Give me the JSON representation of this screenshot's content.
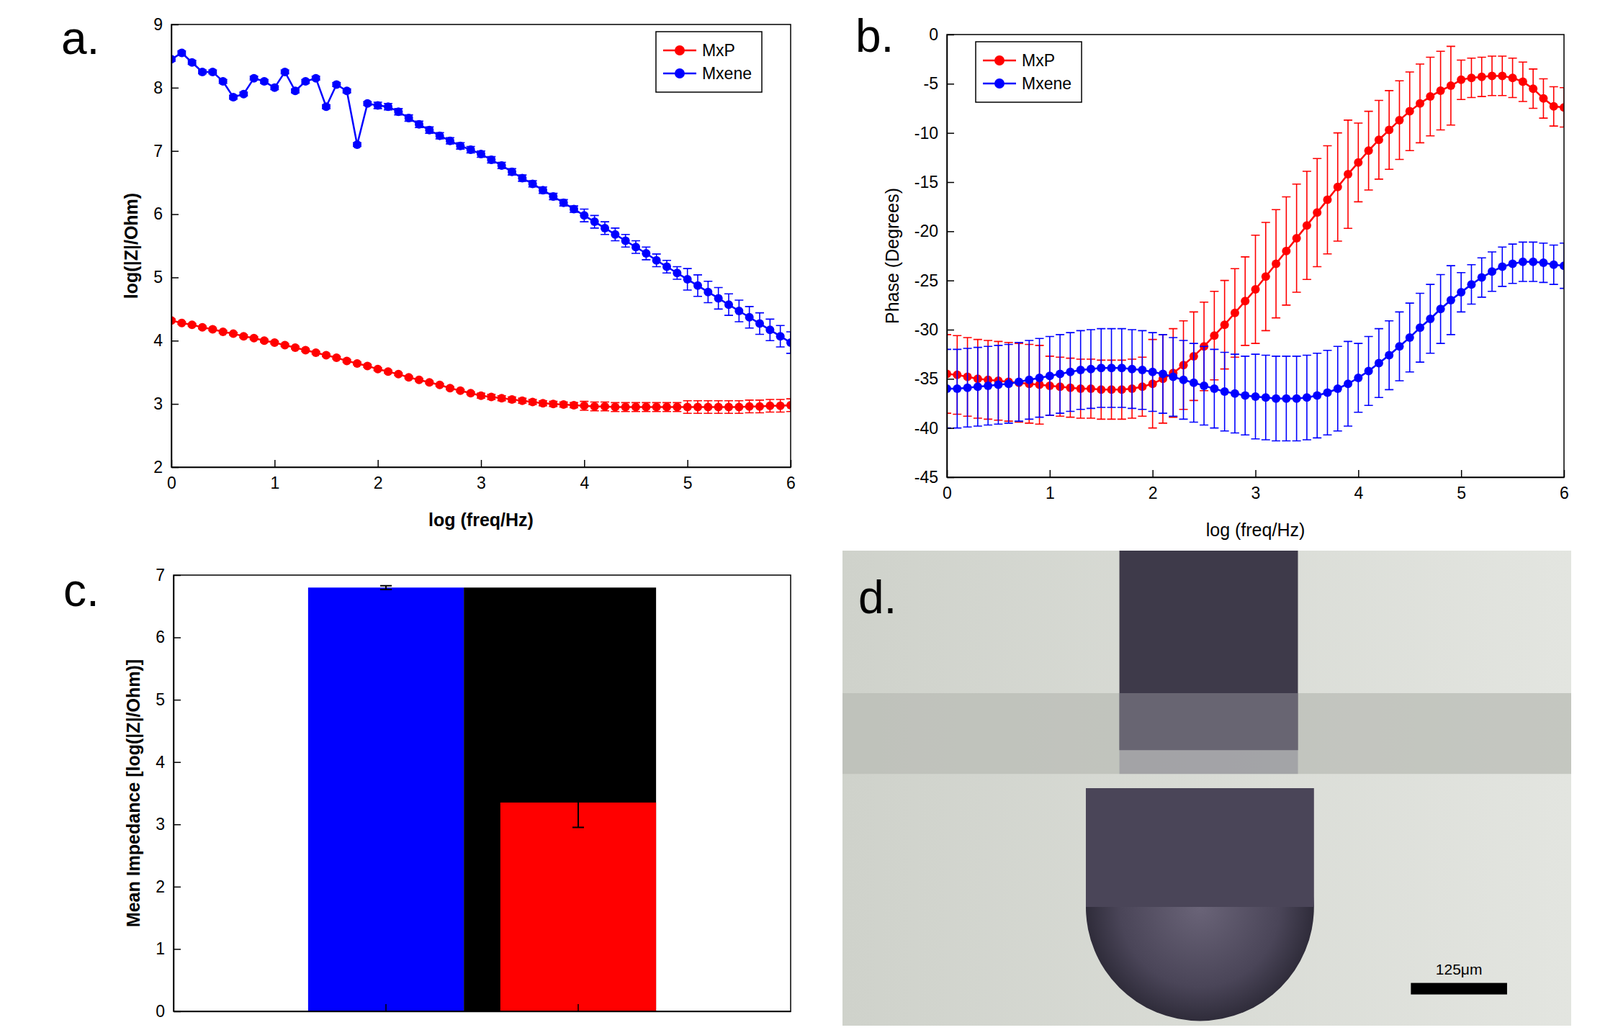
{
  "chart_data": [
    {
      "type": "line",
      "panel": "a.",
      "xlabel": "log (freq/Hz)",
      "ylabel": "log(|Z|/Ohm)",
      "x": [
        0,
        0.1,
        0.2,
        0.3,
        0.4,
        0.5,
        0.6,
        0.7,
        0.8,
        0.9,
        1,
        1.1,
        1.2,
        1.3,
        1.4,
        1.5,
        1.6,
        1.7,
        1.8,
        1.9,
        2,
        2.1,
        2.2,
        2.3,
        2.4,
        2.5,
        2.6,
        2.7,
        2.8,
        2.9,
        3,
        3.1,
        3.2,
        3.3,
        3.4,
        3.5,
        3.6,
        3.7,
        3.8,
        3.9,
        4,
        4.1,
        4.2,
        4.3,
        4.4,
        4.5,
        4.6,
        4.7,
        4.8,
        4.9,
        5,
        5.1,
        5.2,
        5.3,
        5.4,
        5.5,
        5.6,
        5.7,
        5.8,
        5.9,
        6
      ],
      "series": [
        {
          "name": "MxP",
          "color": "#ff0000",
          "marker": "circle",
          "line_style": "solid",
          "values": [
            4.32,
            4.28,
            4.25,
            4.21,
            4.18,
            4.14,
            4.11,
            4.07,
            4.04,
            4.0,
            3.97,
            3.93,
            3.89,
            3.85,
            3.81,
            3.77,
            3.73,
            3.68,
            3.64,
            3.6,
            3.55,
            3.51,
            3.47,
            3.42,
            3.38,
            3.34,
            3.3,
            3.25,
            3.21,
            3.17,
            3.13,
            3.11,
            3.09,
            3.07,
            3.05,
            3.03,
            3.01,
            3.0,
            2.99,
            2.98,
            2.97,
            2.96,
            2.96,
            2.95,
            2.95,
            2.95,
            2.95,
            2.95,
            2.95,
            2.95,
            2.95,
            2.95,
            2.95,
            2.95,
            2.95,
            2.95,
            2.96,
            2.96,
            2.97,
            2.97,
            2.98
          ],
          "errors": [
            0.02,
            0.02,
            0.02,
            0.02,
            0.02,
            0.02,
            0.02,
            0.02,
            0.02,
            0.02,
            0.02,
            0.02,
            0.02,
            0.02,
            0.02,
            0.02,
            0.02,
            0.02,
            0.02,
            0.02,
            0.02,
            0.02,
            0.02,
            0.02,
            0.02,
            0.02,
            0.02,
            0.02,
            0.02,
            0.02,
            0.04,
            0.04,
            0.04,
            0.04,
            0.04,
            0.04,
            0.04,
            0.04,
            0.04,
            0.04,
            0.07,
            0.07,
            0.07,
            0.07,
            0.07,
            0.07,
            0.07,
            0.07,
            0.07,
            0.07,
            0.1,
            0.1,
            0.1,
            0.1,
            0.1,
            0.1,
            0.1,
            0.1,
            0.1,
            0.1,
            0.1
          ]
        },
        {
          "name": "Mxene",
          "color": "#0000ff",
          "marker": "circle",
          "line_style": "solid",
          "values": [
            8.45,
            8.55,
            8.4,
            8.25,
            8.25,
            8.1,
            7.85,
            7.9,
            8.15,
            8.1,
            8.0,
            8.25,
            7.95,
            8.1,
            8.15,
            7.7,
            8.05,
            7.95,
            7.1,
            7.75,
            7.72,
            7.7,
            7.62,
            7.52,
            7.42,
            7.33,
            7.24,
            7.16,
            7.08,
            7.02,
            6.95,
            6.86,
            6.77,
            6.67,
            6.57,
            6.48,
            6.38,
            6.28,
            6.18,
            6.08,
            5.98,
            5.88,
            5.78,
            5.68,
            5.58,
            5.48,
            5.38,
            5.27,
            5.17,
            5.07,
            4.97,
            4.87,
            4.77,
            4.67,
            4.57,
            4.47,
            4.37,
            4.27,
            4.17,
            4.07,
            3.97
          ],
          "errors": [
            0.03,
            0.03,
            0.03,
            0.03,
            0.03,
            0.03,
            0.03,
            0.03,
            0.03,
            0.03,
            0.03,
            0.03,
            0.03,
            0.03,
            0.03,
            0.03,
            0.03,
            0.03,
            0.03,
            0.03,
            0.05,
            0.05,
            0.05,
            0.05,
            0.05,
            0.05,
            0.05,
            0.05,
            0.05,
            0.05,
            0.05,
            0.05,
            0.05,
            0.05,
            0.05,
            0.05,
            0.05,
            0.05,
            0.05,
            0.05,
            0.1,
            0.1,
            0.1,
            0.1,
            0.1,
            0.1,
            0.1,
            0.1,
            0.1,
            0.1,
            0.17,
            0.17,
            0.17,
            0.17,
            0.17,
            0.17,
            0.17,
            0.17,
            0.17,
            0.17,
            0.17
          ]
        }
      ],
      "xlim": [
        0,
        6
      ],
      "xticks": [
        0,
        1,
        2,
        3,
        4,
        5,
        6
      ],
      "ylim": [
        2,
        9
      ],
      "yticks": [
        2,
        3,
        4,
        5,
        6,
        7,
        8,
        9
      ],
      "legend": "upper right",
      "grid": false
    },
    {
      "type": "line",
      "panel": "b.",
      "xlabel": "log (freq/Hz)",
      "ylabel": "Phase (Degrees)",
      "x": [
        0,
        0.1,
        0.2,
        0.3,
        0.4,
        0.5,
        0.6,
        0.7,
        0.8,
        0.9,
        1,
        1.1,
        1.2,
        1.3,
        1.4,
        1.5,
        1.6,
        1.7,
        1.8,
        1.9,
        2,
        2.1,
        2.2,
        2.3,
        2.4,
        2.5,
        2.6,
        2.7,
        2.8,
        2.9,
        3,
        3.1,
        3.2,
        3.3,
        3.4,
        3.5,
        3.6,
        3.7,
        3.8,
        3.9,
        4,
        4.1,
        4.2,
        4.3,
        4.4,
        4.5,
        4.6,
        4.7,
        4.8,
        4.9,
        5,
        5.1,
        5.2,
        5.3,
        5.4,
        5.5,
        5.6,
        5.7,
        5.8,
        5.9,
        6
      ],
      "series": [
        {
          "name": "MxP",
          "color": "#ff0000",
          "marker": "circle",
          "line_style": "solid",
          "values": [
            -34.5,
            -34.6,
            -34.8,
            -35.0,
            -35.1,
            -35.2,
            -35.3,
            -35.4,
            -35.5,
            -35.6,
            -35.7,
            -35.8,
            -35.9,
            -36.0,
            -36.0,
            -36.1,
            -36.1,
            -36.1,
            -36.0,
            -35.8,
            -35.5,
            -35.0,
            -34.4,
            -33.6,
            -32.7,
            -31.7,
            -30.6,
            -29.5,
            -28.3,
            -27.1,
            -25.9,
            -24.6,
            -23.3,
            -22.0,
            -20.7,
            -19.4,
            -18.1,
            -16.8,
            -15.5,
            -14.2,
            -13.0,
            -11.8,
            -10.7,
            -9.7,
            -8.7,
            -7.8,
            -7.0,
            -6.3,
            -5.7,
            -5.2,
            -4.6,
            -4.4,
            -4.3,
            -4.2,
            -4.2,
            -4.4,
            -4.8,
            -5.5,
            -6.5,
            -7.3,
            -7.4
          ],
          "errors": [
            4,
            4,
            4,
            4,
            4,
            4,
            4,
            4,
            4,
            4,
            3,
            3,
            3,
            3,
            3,
            3,
            3,
            3,
            3,
            3,
            4.5,
            4.5,
            4.5,
            4.5,
            4.5,
            4.5,
            4.5,
            4.5,
            4.5,
            4.5,
            5.5,
            5.5,
            5.5,
            5.5,
            5.5,
            5.5,
            5.5,
            5.5,
            5.5,
            5.5,
            4,
            4,
            4,
            4,
            4,
            4,
            4,
            4,
            4,
            4,
            2,
            2,
            2,
            2,
            2,
            2,
            2,
            2,
            2,
            2,
            2
          ]
        },
        {
          "name": "Mxene",
          "color": "#0000ff",
          "marker": "circle",
          "line_style": "solid",
          "values": [
            -36.0,
            -36.0,
            -35.9,
            -35.8,
            -35.7,
            -35.6,
            -35.5,
            -35.3,
            -35.1,
            -34.9,
            -34.7,
            -34.5,
            -34.3,
            -34.1,
            -34.0,
            -33.9,
            -33.9,
            -33.9,
            -34.0,
            -34.1,
            -34.3,
            -34.5,
            -34.8,
            -35.1,
            -35.4,
            -35.7,
            -36.0,
            -36.3,
            -36.5,
            -36.7,
            -36.8,
            -36.9,
            -37.0,
            -37.0,
            -37.0,
            -36.9,
            -36.7,
            -36.4,
            -36.0,
            -35.5,
            -34.9,
            -34.2,
            -33.4,
            -32.6,
            -31.7,
            -30.8,
            -29.8,
            -28.9,
            -27.9,
            -27.0,
            -26.2,
            -25.4,
            -24.7,
            -24.1,
            -23.6,
            -23.3,
            -23.1,
            -23.1,
            -23.2,
            -23.4,
            -23.5
          ],
          "errors": [
            4,
            4,
            4,
            4,
            4,
            4,
            4,
            4,
            4,
            4,
            4,
            4,
            4,
            4,
            4,
            4,
            4,
            4,
            4,
            4,
            4,
            4,
            4,
            4,
            4,
            4,
            4,
            4,
            4,
            4,
            4.3,
            4.3,
            4.3,
            4.3,
            4.3,
            4.3,
            4.3,
            4.3,
            4.3,
            4.3,
            3.5,
            3.5,
            3.5,
            3.5,
            3.5,
            3.5,
            3.5,
            3.5,
            3.5,
            3.5,
            2,
            2,
            2,
            2,
            2,
            2,
            2,
            2,
            2,
            2,
            2.3
          ]
        }
      ],
      "xlim": [
        0,
        6
      ],
      "xticks": [
        0,
        1,
        2,
        3,
        4,
        5,
        6
      ],
      "ylim": [
        -45,
        0
      ],
      "yticks": [
        -45,
        -40,
        -35,
        -30,
        -25,
        -20,
        -15,
        -10,
        -5,
        0
      ],
      "legend": "upper left",
      "grid": false
    },
    {
      "type": "bar",
      "panel": "c.",
      "ylabel": "Mean Impedance [log(|Z|/Ohm)]",
      "categories": [
        null,
        null
      ],
      "series": [
        {
          "color": "#0000ff",
          "values": [
            6.8,
            null
          ],
          "errors": [
            0.03,
            null
          ]
        },
        {
          "color": "#000000",
          "values": [
            null,
            6.8
          ]
        },
        {
          "color": "#ff0000",
          "values": [
            null,
            3.35
          ],
          "errors": [
            null,
            0.4
          ]
        }
      ],
      "ylim": [
        0,
        7
      ],
      "yticks": [
        0,
        1,
        2,
        3,
        4,
        5,
        6,
        7
      ],
      "tick_labels": "y",
      "grid": false
    },
    {
      "type": "image",
      "panel": "d.",
      "annotations": [
        "125μm"
      ]
    }
  ]
}
